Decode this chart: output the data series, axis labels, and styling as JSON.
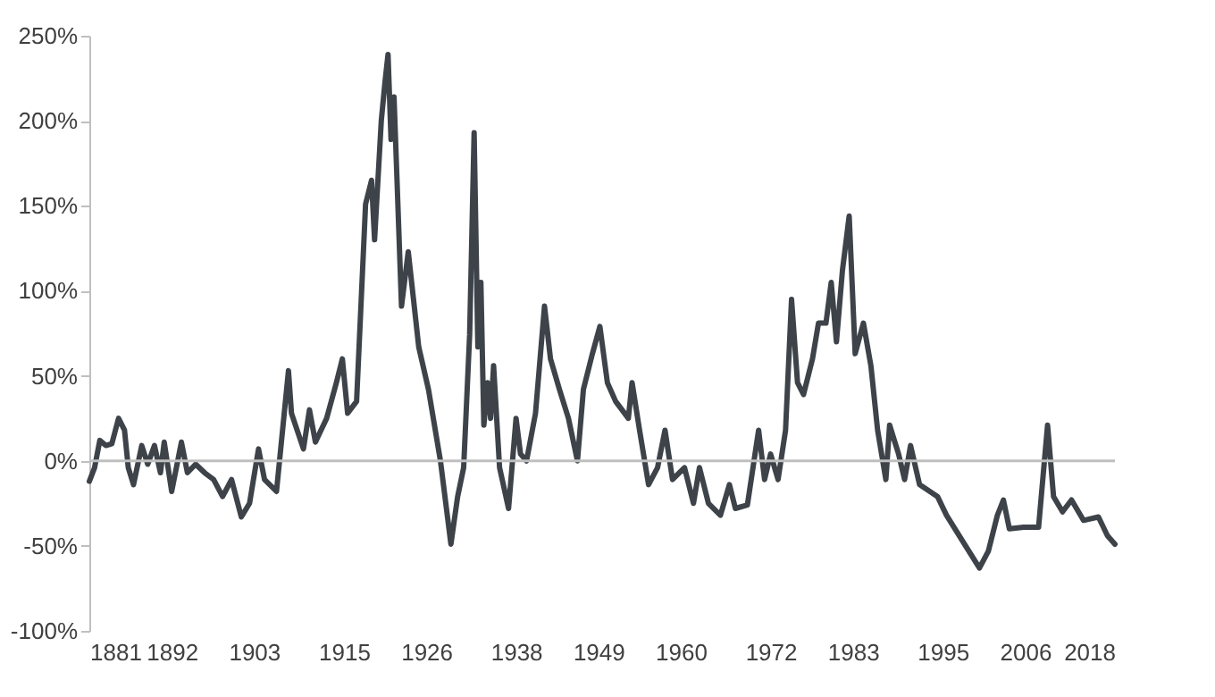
{
  "chart_data": {
    "type": "line",
    "x": [
      1881,
      1881.7,
      1882.4,
      1883.2,
      1884,
      1884.9,
      1885.7,
      1886.2,
      1886.9,
      1888,
      1888.8,
      1889.7,
      1890.5,
      1891,
      1892,
      1893.3,
      1894.1,
      1895.2,
      1896.4,
      1897.6,
      1898.8,
      1900,
      1901.3,
      1902.4,
      1903.6,
      1904.4,
      1906,
      1907.6,
      1908,
      1909.6,
      1910.4,
      1911.2,
      1912.7,
      1914,
      1914.8,
      1915.5,
      1916.7,
      1917.9,
      1918.7,
      1919.1,
      1920,
      1920.5,
      1920.9,
      1921.3,
      1921.7,
      1922.1,
      1922.7,
      1923.6,
      1924.3,
      1925,
      1926.3,
      1927.9,
      1929.3,
      1930.2,
      1931,
      1931.8,
      1932.4,
      1932.9,
      1933.3,
      1933.7,
      1934.2,
      1934.6,
      1935,
      1935.8,
      1937,
      1938,
      1938.6,
      1939.4,
      1940.6,
      1941.8,
      1942.6,
      1943.8,
      1945,
      1946.2,
      1947,
      1948.2,
      1949.2,
      1950.2,
      1951.3,
      1953,
      1953.5,
      1954.5,
      1955.7,
      1956.9,
      1957.9,
      1958.9,
      1960.5,
      1961.7,
      1962.5,
      1963.7,
      1965.3,
      1966.5,
      1967.3,
      1968.9,
      1970.4,
      1971.2,
      1972,
      1973,
      1974,
      1974.8,
      1975.6,
      1976.4,
      1977.6,
      1978.4,
      1979.4,
      1980.1,
      1980.8,
      1981.6,
      1982.5,
      1983.3,
      1984.4,
      1985.4,
      1986.3,
      1987.4,
      1987.9,
      1989.1,
      1989.9,
      1990.7,
      1991.9,
      1994.3,
      1995.5,
      1997.9,
      1999.9,
      2001.1,
      2002.3,
      2003.1,
      2003.9,
      2005.8,
      2007.8,
      2009,
      2009.8,
      2011,
      2012.2,
      2013.8,
      2015.8,
      2017,
      2018
    ],
    "series": [
      {
        "color": "#3d4349",
        "values": [
          -12,
          -4,
          12,
          9,
          10,
          25,
          18,
          -4,
          -14,
          9,
          -2,
          9,
          -7,
          11,
          -18,
          11,
          -7,
          -2,
          -7,
          -11,
          -21,
          -11,
          -33,
          -25,
          7,
          -11,
          -18,
          53,
          28,
          7,
          30,
          11,
          25,
          46,
          60,
          28,
          35,
          151,
          165,
          130,
          200,
          223,
          239,
          189,
          214,
          165,
          91,
          123,
          95,
          67,
          42,
          0,
          -49,
          -21,
          -4,
          74,
          193,
          67,
          105,
          21,
          46,
          25,
          56,
          -4,
          -28,
          25,
          4,
          0,
          28,
          91,
          60,
          42,
          25,
          0,
          42,
          63,
          79,
          46,
          35,
          25,
          46,
          18,
          -14,
          -4,
          18,
          -11,
          -4,
          -25,
          -4,
          -25,
          -32,
          -14,
          -28,
          -26,
          18,
          -11,
          4,
          -11,
          18,
          95,
          46,
          39,
          60,
          81,
          81,
          105,
          70,
          112,
          144,
          63,
          81,
          56,
          18,
          -11,
          21,
          4,
          -11,
          9,
          -14,
          -21,
          -32,
          -49,
          -63,
          -53,
          -32,
          -23,
          -40,
          -39,
          -39,
          21,
          -21,
          -30,
          -23,
          -35,
          -33,
          -44,
          -49
        ]
      }
    ],
    "xlim": [
      1881,
      2018
    ],
    "xticks": [
      1881,
      1892,
      1903,
      1915,
      1926,
      1938,
      1949,
      1960,
      1972,
      1983,
      1995,
      2006,
      2018
    ],
    "ylim": [
      -100,
      250
    ],
    "yticks": [
      {
        "value": -100,
        "label": "-100%"
      },
      {
        "value": -50,
        "label": "-50%"
      },
      {
        "value": 0,
        "label": "0%"
      },
      {
        "value": 50,
        "label": "50%"
      },
      {
        "value": 100,
        "label": "100%"
      },
      {
        "value": 150,
        "label": "150%"
      },
      {
        "value": 200,
        "label": "200%"
      },
      {
        "value": 250,
        "label": "250%"
      }
    ],
    "ref_lines": [
      {
        "axis": "y",
        "value": 0,
        "color": "#bfbfbf"
      }
    ],
    "grid": false
  }
}
